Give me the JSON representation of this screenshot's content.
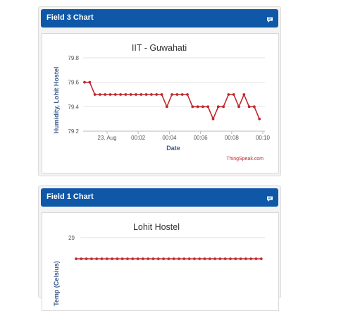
{
  "panels": [
    {
      "title": "Field 3 Chart",
      "icon": "comment-icon",
      "chart_title": "IIT - Guwahati",
      "ylabel": "Humidity, Lohit Hostel",
      "xlabel": "Date",
      "credit": "ThingSpeak.com",
      "y_ticks": [
        "79.8",
        "79.6",
        "79.4",
        "79.2"
      ],
      "x_ticks": [
        "23. Aug",
        "00:02",
        "00:04",
        "00:06",
        "00:08",
        "00:10"
      ]
    },
    {
      "title": "Field 1 Chart",
      "icon": "comment-icon",
      "chart_title": "Lohit Hostel",
      "ylabel": "Temp (Celsius)",
      "y_ticks": [
        "29"
      ]
    }
  ],
  "colors": {
    "header": "#0f58a8",
    "series": "#c0282d",
    "axis_label": "#3b5b8c"
  },
  "chart_data": [
    {
      "type": "line",
      "title": "IIT - Guwahati",
      "xlabel": "Date",
      "ylabel": "Humidity, Lohit Hostel",
      "ylim": [
        79.2,
        79.8
      ],
      "x_ticks": [
        "23. Aug",
        "00:02",
        "00:04",
        "00:06",
        "00:08",
        "00:10"
      ],
      "series": [
        {
          "values": [
            79.6,
            79.6,
            79.5,
            79.5,
            79.5,
            79.5,
            79.5,
            79.5,
            79.5,
            79.5,
            79.5,
            79.5,
            79.5,
            79.5,
            79.5,
            79.5,
            79.4,
            79.5,
            79.5,
            79.5,
            79.5,
            79.4,
            79.4,
            79.4,
            79.4,
            79.3,
            79.4,
            79.4,
            79.5,
            79.5,
            79.4,
            79.5,
            79.4,
            79.4,
            79.3
          ]
        }
      ]
    },
    {
      "type": "line",
      "title": "Lohit Hostel",
      "ylabel": "Temp (Celsius)",
      "y_ticks": [
        "29"
      ],
      "series": [
        {
          "values": [
            28.7,
            28.7,
            28.7,
            28.7,
            28.7,
            28.7,
            28.7,
            28.7,
            28.7,
            28.7,
            28.7,
            28.7,
            28.7,
            28.7,
            28.7,
            28.7,
            28.7,
            28.7,
            28.7,
            28.7,
            28.7,
            28.7,
            28.7,
            28.7,
            28.7,
            28.7,
            28.7,
            28.7,
            28.7,
            28.7,
            28.7,
            28.7,
            28.7,
            28.7,
            28.7,
            28.7,
            28.7
          ]
        }
      ]
    }
  ]
}
